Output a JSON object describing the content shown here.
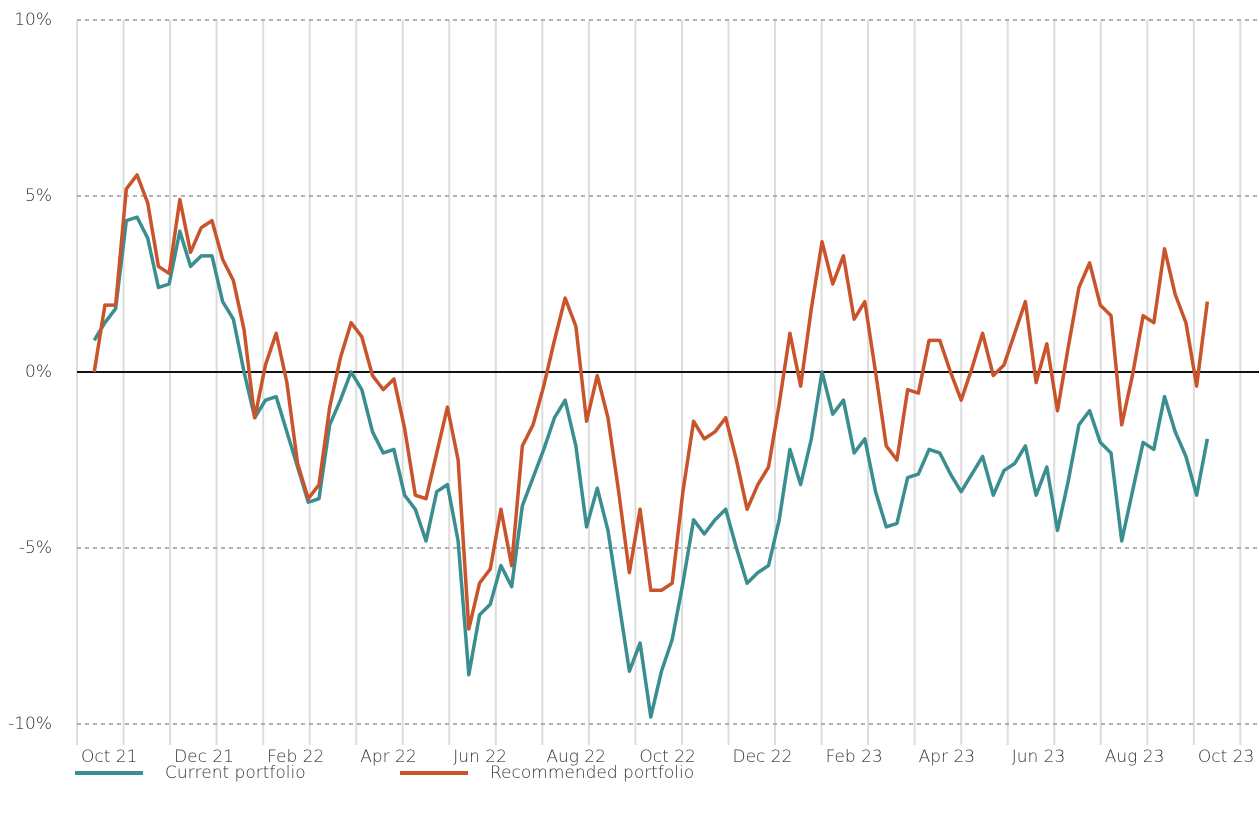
{
  "chart_data": {
    "type": "line",
    "x": [
      0.37,
      0.6,
      0.83,
      1.06,
      1.29,
      1.52,
      1.75,
      1.98,
      2.21,
      2.44,
      2.67,
      2.9,
      3.13,
      3.36,
      3.59,
      3.82,
      4.05,
      4.28,
      4.51,
      4.74,
      4.97,
      5.2,
      5.43,
      5.66,
      5.89,
      6.12,
      6.35,
      6.58,
      6.81,
      7.04,
      7.27,
      7.5,
      7.73,
      7.96,
      8.19,
      8.42,
      8.65,
      8.88,
      9.11,
      9.34,
      9.57,
      9.8,
      10.03,
      10.26,
      10.49,
      10.72,
      10.95,
      11.18,
      11.41,
      11.64,
      11.87,
      12.1,
      12.33,
      12.56,
      12.79,
      13.02,
      13.25,
      13.48,
      13.71,
      13.94,
      14.17,
      14.4,
      14.63,
      14.86,
      15.09,
      15.32,
      15.55,
      15.78,
      16.01,
      16.24,
      16.47,
      16.7,
      16.93,
      17.16,
      17.39,
      17.62,
      17.85,
      18.08,
      18.31,
      18.54,
      18.77,
      19.0,
      19.23,
      19.46,
      19.69,
      19.92,
      20.15,
      20.38,
      20.61,
      20.84,
      21.07,
      21.3,
      21.53,
      21.76,
      21.99,
      22.22,
      22.45,
      22.68,
      22.91,
      23.14,
      23.37,
      23.6,
      23.83,
      24.06,
      24.29
    ],
    "series": [
      {
        "name": "Current portfolio",
        "color": "#3b8e8f",
        "values": [
          0.9,
          1.4,
          1.8,
          4.3,
          4.4,
          3.8,
          2.4,
          2.5,
          4.0,
          3.0,
          3.3,
          3.3,
          2.0,
          1.5,
          0.0,
          -1.3,
          -0.8,
          -0.7,
          -1.7,
          -2.7,
          -3.7,
          -3.6,
          -1.5,
          -0.8,
          0.0,
          -0.5,
          -1.7,
          -2.3,
          -2.2,
          -3.5,
          -3.9,
          -4.8,
          -3.4,
          -3.2,
          -4.8,
          -8.6,
          -6.9,
          -6.6,
          -5.5,
          -6.1,
          -3.8,
          -3.0,
          -2.2,
          -1.3,
          -0.8,
          -2.1,
          -4.4,
          -3.3,
          -4.5,
          -6.5,
          -8.5,
          -7.7,
          -9.8,
          -8.5,
          -7.6,
          -6.0,
          -4.2,
          -4.6,
          -4.2,
          -3.9,
          -5.0,
          -6.0,
          -5.7,
          -5.5,
          -4.2,
          -2.2,
          -3.2,
          -1.9,
          0.0,
          -1.2,
          -0.8,
          -2.3,
          -1.9,
          -3.4,
          -4.4,
          -4.3,
          -3.0,
          -2.9,
          -2.2,
          -2.3,
          -2.9,
          -3.4,
          -2.9,
          -2.4,
          -3.5,
          -2.8,
          -2.6,
          -2.1,
          -3.5,
          -2.7,
          -4.5,
          -3.1,
          -1.5,
          -1.1,
          -2.0,
          -2.3,
          -4.8,
          -3.4,
          -2.0,
          -2.2,
          -0.7,
          -1.7,
          -2.4,
          -3.5,
          -1.9
        ]
      },
      {
        "name": "Recommended portfolio",
        "color": "#c9542b",
        "values": [
          0.0,
          1.9,
          1.9,
          5.2,
          5.6,
          4.8,
          3.0,
          2.8,
          4.9,
          3.4,
          4.1,
          4.3,
          3.2,
          2.6,
          1.2,
          -1.3,
          0.2,
          1.1,
          -0.3,
          -2.6,
          -3.6,
          -3.2,
          -1.0,
          0.4,
          1.4,
          1.0,
          -0.1,
          -0.5,
          -0.2,
          -1.6,
          -3.5,
          -3.6,
          -2.3,
          -1.0,
          -2.5,
          -7.3,
          -6.0,
          -5.6,
          -3.9,
          -5.5,
          -2.1,
          -1.5,
          -0.4,
          0.9,
          2.1,
          1.3,
          -1.4,
          -0.1,
          -1.3,
          -3.4,
          -5.7,
          -3.9,
          -6.2,
          -6.2,
          -6.0,
          -3.4,
          -1.4,
          -1.9,
          -1.7,
          -1.3,
          -2.5,
          -3.9,
          -3.2,
          -2.7,
          -0.9,
          1.1,
          -0.4,
          1.8,
          3.7,
          2.5,
          3.3,
          1.5,
          2.0,
          0.0,
          -2.1,
          -2.5,
          -0.5,
          -0.6,
          0.9,
          0.9,
          0.0,
          -0.8,
          0.1,
          1.1,
          -0.1,
          0.2,
          1.1,
          2.0,
          -0.3,
          0.8,
          -1.1,
          0.7,
          2.4,
          3.1,
          1.9,
          1.6,
          -1.5,
          -0.1,
          1.6,
          1.4,
          3.5,
          2.2,
          1.4,
          -0.4,
          2.0
        ]
      }
    ],
    "xlim": [
      0,
      25.4
    ],
    "xticks": [
      {
        "value": 0,
        "label": "Oct 21"
      },
      {
        "value": 1,
        "label": null
      },
      {
        "value": 2,
        "label": "Dec 21"
      },
      {
        "value": 3,
        "label": null
      },
      {
        "value": 4,
        "label": "Feb 22"
      },
      {
        "value": 5,
        "label": null
      },
      {
        "value": 6,
        "label": "Apr 22"
      },
      {
        "value": 7,
        "label": null
      },
      {
        "value": 8,
        "label": "Jun 22"
      },
      {
        "value": 9,
        "label": null
      },
      {
        "value": 10,
        "label": "Aug 22"
      },
      {
        "value": 11,
        "label": null
      },
      {
        "value": 12,
        "label": "Oct 22"
      },
      {
        "value": 13,
        "label": null
      },
      {
        "value": 14,
        "label": "Dec 22"
      },
      {
        "value": 15,
        "label": null
      },
      {
        "value": 16,
        "label": "Feb 23"
      },
      {
        "value": 17,
        "label": null
      },
      {
        "value": 18,
        "label": "Apr 23"
      },
      {
        "value": 19,
        "label": null
      },
      {
        "value": 20,
        "label": "Jun 23"
      },
      {
        "value": 21,
        "label": null
      },
      {
        "value": 22,
        "label": "Aug 23"
      },
      {
        "value": 23,
        "label": null
      },
      {
        "value": 24,
        "label": "Oct 23"
      },
      {
        "value": 25,
        "label": null
      }
    ],
    "ylim": [
      -10,
      10
    ],
    "yticks": [
      {
        "value": 10,
        "label": "10%"
      },
      {
        "value": 5,
        "label": "5%"
      },
      {
        "value": 0,
        "label": "0%"
      },
      {
        "value": -5,
        "label": "-5%"
      },
      {
        "value": -10,
        "label": "-10%"
      }
    ],
    "grid": true
  }
}
